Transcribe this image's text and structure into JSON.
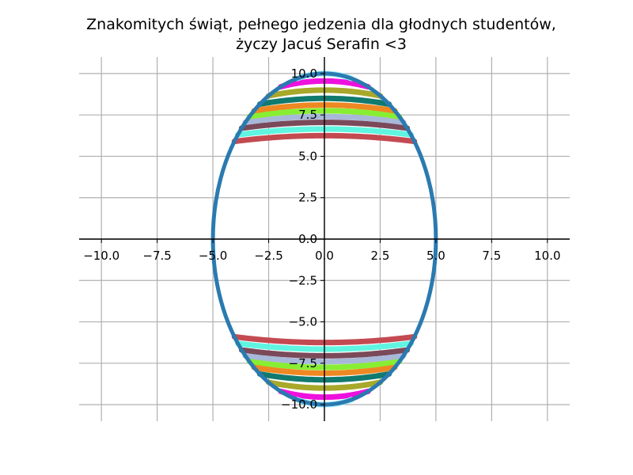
{
  "chart_data": {
    "type": "line",
    "title_lines": [
      "Znakomitych świąt, pełnego jedzenia dla głodnych studentów,",
      "życzy Jacuś Serafin <3"
    ],
    "xlabel": "",
    "ylabel": "",
    "xlim": [
      -11,
      11
    ],
    "ylim": [
      -11,
      11
    ],
    "grid": true,
    "x_ticks": [
      -10.0,
      -7.5,
      -5.0,
      -2.5,
      0.0,
      2.5,
      5.0,
      7.5,
      10.0
    ],
    "y_ticks": [
      -10.0,
      -7.5,
      -5.0,
      -2.5,
      0.0,
      2.5,
      5.0,
      7.5,
      10.0
    ],
    "x_tick_labels": [
      "−10.0",
      "−7.5",
      "−5.0",
      "−2.5",
      "0.0",
      "2.5",
      "5.0",
      "7.5",
      "10.0"
    ],
    "y_tick_labels": [
      "−10.0",
      "−7.5",
      "−5.0",
      "−2.5",
      "0.0",
      "2.5",
      "5.0",
      "7.5",
      "10.0"
    ],
    "ellipse": {
      "a": 5,
      "b": 10,
      "color": "#2a7ab0"
    },
    "bands": [
      {
        "y": 5.9,
        "color": "#c44a52"
      },
      {
        "y": 6.3,
        "color": "#5ff5e0"
      },
      {
        "y": 6.7,
        "color": "#7a4a5a"
      },
      {
        "y": 7.05,
        "color": "#a8b8d8"
      },
      {
        "y": 7.4,
        "color": "#88ee33"
      },
      {
        "y": 7.75,
        "color": "#ee8822"
      },
      {
        "y": 8.15,
        "color": "#117a6e"
      },
      {
        "y": 8.65,
        "color": "#a8a82a"
      },
      {
        "y": 9.2,
        "color": "#ee11dd"
      },
      {
        "y": 9.7,
        "color": "#99eeff"
      }
    ],
    "band_depth": 0.35
  }
}
